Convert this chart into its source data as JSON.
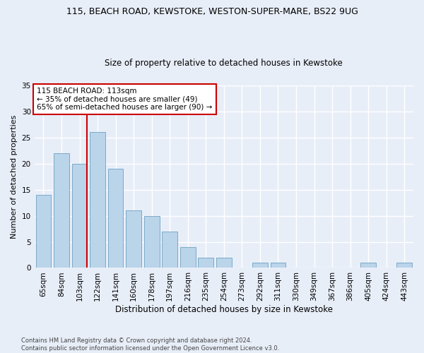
{
  "title1": "115, BEACH ROAD, KEWSTOKE, WESTON-SUPER-MARE, BS22 9UG",
  "title2": "Size of property relative to detached houses in Kewstoke",
  "xlabel": "Distribution of detached houses by size in Kewstoke",
  "ylabel": "Number of detached properties",
  "categories": [
    "65sqm",
    "84sqm",
    "103sqm",
    "122sqm",
    "141sqm",
    "160sqm",
    "178sqm",
    "197sqm",
    "216sqm",
    "235sqm",
    "254sqm",
    "273sqm",
    "292sqm",
    "311sqm",
    "330sqm",
    "349sqm",
    "367sqm",
    "386sqm",
    "405sqm",
    "424sqm",
    "443sqm"
  ],
  "values": [
    14,
    22,
    20,
    26,
    19,
    11,
    10,
    7,
    4,
    2,
    2,
    0,
    1,
    1,
    0,
    0,
    0,
    0,
    1,
    0,
    1
  ],
  "bar_color": "#bad4ea",
  "bar_edge_color": "#7aaac8",
  "vline_color": "#cc0000",
  "annotation_text": "115 BEACH ROAD: 113sqm\n← 35% of detached houses are smaller (49)\n65% of semi-detached houses are larger (90) →",
  "annotation_box_color": "#ffffff",
  "annotation_box_edge": "#cc0000",
  "annotation_fontsize": 7.5,
  "ylim": [
    0,
    35
  ],
  "yticks": [
    0,
    5,
    10,
    15,
    20,
    25,
    30,
    35
  ],
  "footer": "Contains HM Land Registry data © Crown copyright and database right 2024.\nContains public sector information licensed under the Open Government Licence v3.0.",
  "bg_color": "#e8eef8",
  "grid_color": "#ffffff"
}
